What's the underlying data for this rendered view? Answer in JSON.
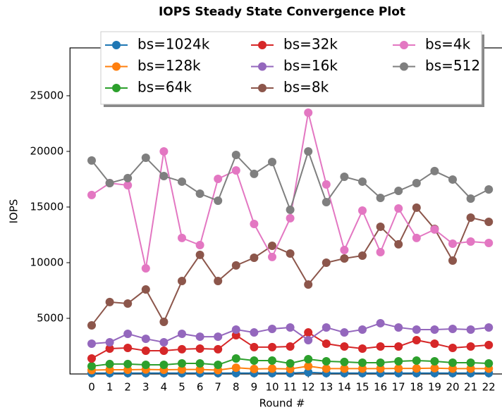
{
  "chart_data": {
    "type": "line",
    "title": "IOPS Steady State Convergence Plot",
    "xlabel": "Round #",
    "ylabel": "IOPS",
    "x": [
      0,
      1,
      2,
      3,
      4,
      5,
      6,
      7,
      8,
      9,
      10,
      11,
      12,
      13,
      14,
      15,
      16,
      17,
      18,
      19,
      20,
      21,
      22
    ],
    "xlim": [
      -1.2,
      23.2
    ],
    "ylim": [
      0,
      29300
    ],
    "xticks": [
      0,
      1,
      2,
      3,
      4,
      5,
      6,
      7,
      8,
      9,
      10,
      11,
      12,
      13,
      14,
      15,
      16,
      17,
      18,
      19,
      20,
      21,
      22
    ],
    "yticks": [
      5000,
      10000,
      15000,
      20000,
      25000
    ],
    "legend": "upper center",
    "legend_columns": 3,
    "series": [
      {
        "name": "bs=1024k",
        "color": "#1f77b4",
        "values": [
          80,
          80,
          80,
          80,
          80,
          80,
          80,
          80,
          80,
          80,
          80,
          80,
          150,
          80,
          80,
          80,
          80,
          80,
          80,
          80,
          80,
          80,
          80
        ]
      },
      {
        "name": "bs=128k",
        "color": "#ff7f0e",
        "values": [
          350,
          380,
          380,
          400,
          380,
          400,
          400,
          350,
          560,
          450,
          480,
          450,
          700,
          480,
          480,
          480,
          480,
          500,
          500,
          520,
          480,
          480,
          480
        ]
      },
      {
        "name": "bs=64k",
        "color": "#2ca02c",
        "values": [
          700,
          890,
          890,
          820,
          820,
          950,
          950,
          820,
          1390,
          1200,
          1200,
          950,
          1330,
          1140,
          1080,
          1010,
          1010,
          1140,
          1200,
          1140,
          1010,
          1010,
          950
        ]
      },
      {
        "name": "bs=32k",
        "color": "#d62728",
        "values": [
          1390,
          2280,
          2340,
          2090,
          2090,
          2220,
          2280,
          2220,
          3480,
          2410,
          2410,
          2470,
          3730,
          2720,
          2470,
          2280,
          2470,
          2470,
          3040,
          2720,
          2340,
          2470,
          2600
        ]
      },
      {
        "name": "bs=16k",
        "color": "#9467bd",
        "values": [
          2720,
          2850,
          3610,
          3160,
          2850,
          3610,
          3350,
          3350,
          3990,
          3730,
          4050,
          4180,
          3040,
          4180,
          3730,
          3990,
          4560,
          4180,
          3990,
          3990,
          4050,
          3990,
          4180
        ]
      },
      {
        "name": "bs=8k",
        "color": "#8c564b",
        "values": [
          4370,
          6460,
          6330,
          7590,
          4680,
          8350,
          10700,
          8350,
          9750,
          10440,
          11520,
          10820,
          8040,
          10000,
          10380,
          10630,
          13230,
          11650,
          14940,
          13040,
          10190,
          14050,
          13670
        ]
      },
      {
        "name": "bs=4k",
        "color": "#e377c2",
        "values": [
          16080,
          17150,
          16960,
          9490,
          20000,
          12220,
          11580,
          17530,
          18290,
          13480,
          10510,
          13990,
          23480,
          17030,
          11140,
          14680,
          10950,
          14870,
          12220,
          12980,
          11710,
          11900,
          11770
        ]
      },
      {
        "name": "bs=512",
        "color": "#7f7f7f",
        "values": [
          19180,
          17150,
          17600,
          19430,
          17780,
          17280,
          16200,
          15570,
          19680,
          17980,
          19050,
          14750,
          20000,
          15440,
          17720,
          17280,
          15820,
          16450,
          17150,
          18230,
          17470,
          15760,
          16580
        ]
      }
    ]
  }
}
